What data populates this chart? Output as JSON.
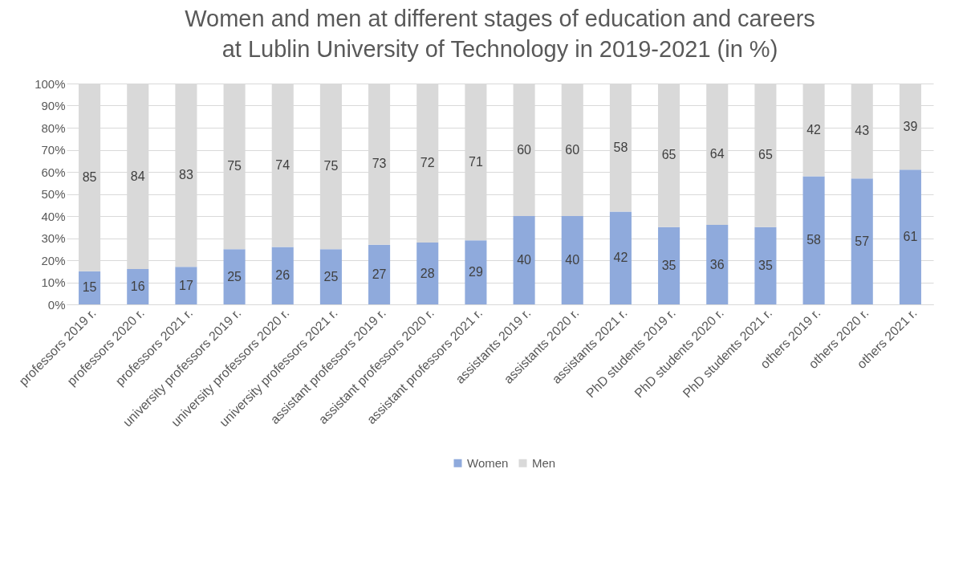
{
  "chart_data": {
    "type": "bar",
    "title": "Women and men at different stages of education and careers\nat Lublin University of Technology in 2019-2021 (in %)",
    "categories": [
      "professors 2019 r.",
      "professors 2020 r.",
      "professors 2021 r.",
      "university professors 2019 r.",
      "university professors 2020 r.",
      "university professors 2021 r.",
      "assistant professors 2019 r.",
      "assistant professors 2020 r.",
      "assistant professors 2021 r.",
      "assistants 2019 r.",
      "assistants 2020 r.",
      "assistants 2021 r.",
      "PhD students 2019 r.",
      "PhD students 2020 r.",
      "PhD students 2021 r.",
      "others 2019 r.",
      "others 2020 r.",
      "others 2021 r."
    ],
    "series": [
      {
        "name": "Women",
        "color": "#8faadc",
        "values": [
          15,
          16,
          17,
          25,
          26,
          25,
          27,
          28,
          29,
          40,
          40,
          42,
          35,
          36,
          35,
          58,
          57,
          61
        ]
      },
      {
        "name": "Men",
        "color": "#d9d9d9",
        "values": [
          85,
          84,
          83,
          75,
          74,
          75,
          73,
          72,
          71,
          60,
          60,
          58,
          65,
          64,
          65,
          42,
          43,
          39
        ]
      }
    ],
    "stacked": true,
    "data_labels": true,
    "grid": "y",
    "legend": "bottom",
    "ylim": [
      0,
      100
    ],
    "yticks": [
      {
        "value": 0,
        "label": "0%"
      },
      {
        "value": 10,
        "label": "10%"
      },
      {
        "value": 20,
        "label": "20%"
      },
      {
        "value": 30,
        "label": "30%"
      },
      {
        "value": 40,
        "label": "40%"
      },
      {
        "value": 50,
        "label": "50%"
      },
      {
        "value": 60,
        "label": "60%"
      },
      {
        "value": 70,
        "label": "70%"
      },
      {
        "value": 80,
        "label": "80%"
      },
      {
        "value": 90,
        "label": "90%"
      },
      {
        "value": 100,
        "label": "100%"
      }
    ]
  }
}
